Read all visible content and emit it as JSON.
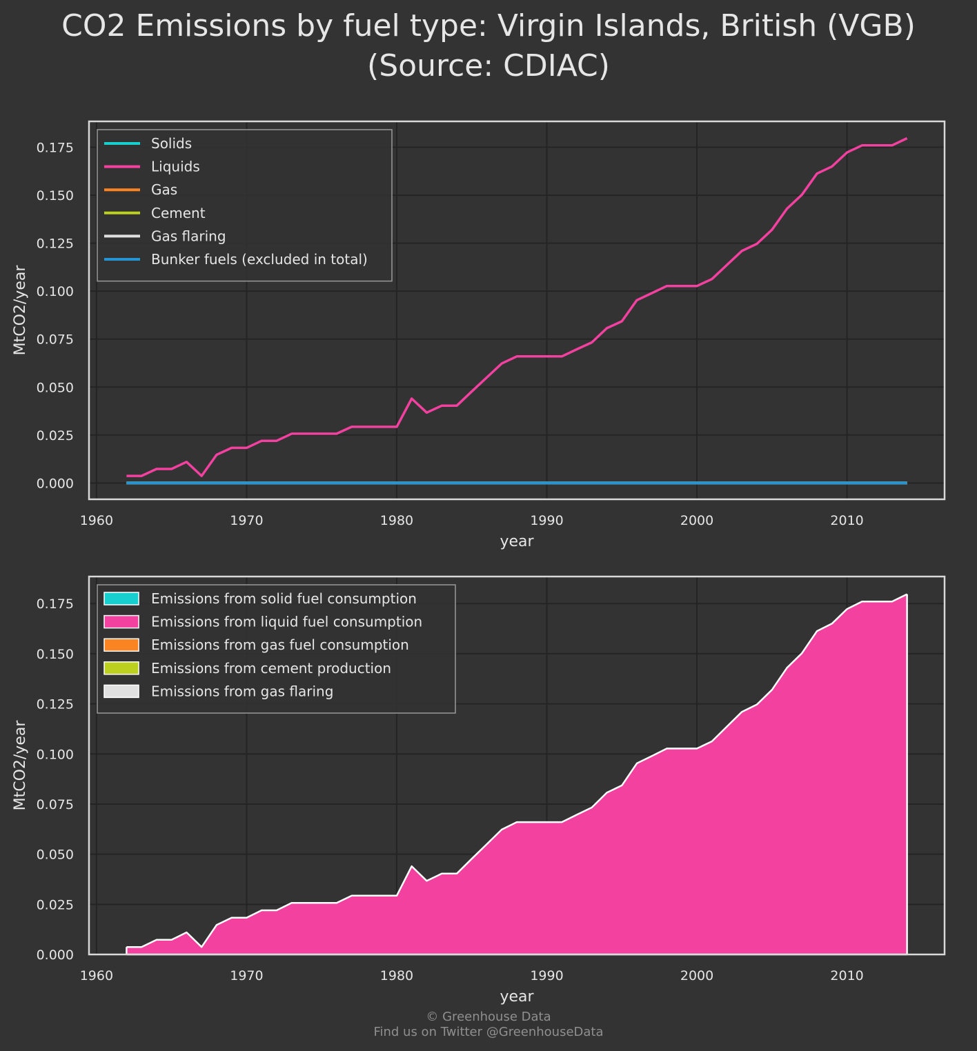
{
  "title_line1": "CO2 Emissions by fuel type: Virgin Islands, British (VGB)",
  "title_line2": "(Source: CDIAC)",
  "footer": {
    "credit": "© Greenhouse Data",
    "twitter": "Find us on Twitter @GreenhouseData"
  },
  "colors": {
    "background": "#333333",
    "axes_frame": "#d9d9d9",
    "grid": "#242424",
    "solids": "#17cfcf",
    "liquids": "#f2419f",
    "gas": "#fb8422",
    "cement": "#bcd01f",
    "gas_flaring": "#e0e0e0",
    "bunker": "#2494d2"
  },
  "chart_data": [
    {
      "type": "line",
      "xlabel": "year",
      "ylabel": "MtCO2/year",
      "xlim": [
        1959.5,
        2016.5
      ],
      "ylim": [
        -0.0085,
        0.1885
      ],
      "xticks": [
        1960,
        1970,
        1980,
        1990,
        2000,
        2010
      ],
      "yticks": [
        "0.000",
        "0.025",
        "0.050",
        "0.075",
        "0.100",
        "0.125",
        "0.150",
        "0.175"
      ],
      "legend_position": "top-left",
      "x": [
        1962,
        1963,
        1964,
        1965,
        1966,
        1967,
        1968,
        1969,
        1970,
        1971,
        1972,
        1973,
        1974,
        1975,
        1976,
        1977,
        1978,
        1979,
        1980,
        1981,
        1982,
        1983,
        1984,
        1985,
        1986,
        1987,
        1988,
        1989,
        1990,
        1991,
        1992,
        1993,
        1994,
        1995,
        1996,
        1997,
        1998,
        1999,
        2000,
        2001,
        2002,
        2003,
        2004,
        2005,
        2006,
        2007,
        2008,
        2009,
        2010,
        2011,
        2012,
        2013,
        2014
      ],
      "series": [
        {
          "name": "Solids",
          "color_key": "solids",
          "constant": 0
        },
        {
          "name": "Liquids",
          "color_key": "liquids",
          "values": [
            0.0037,
            0.0037,
            0.0073,
            0.0073,
            0.011,
            0.0037,
            0.0147,
            0.0183,
            0.0183,
            0.022,
            0.022,
            0.0257,
            0.0257,
            0.0257,
            0.0257,
            0.0293,
            0.0293,
            0.0293,
            0.0293,
            0.044,
            0.0367,
            0.0403,
            0.0403,
            0.0477,
            0.055,
            0.0623,
            0.066,
            0.066,
            0.066,
            0.066,
            0.0697,
            0.0733,
            0.0807,
            0.0843,
            0.0953,
            0.099,
            0.1027,
            0.1027,
            0.1027,
            0.1063,
            0.1137,
            0.121,
            0.1247,
            0.132,
            0.143,
            0.1503,
            0.1613,
            0.165,
            0.1723,
            0.176,
            0.176,
            0.176,
            0.1797
          ]
        },
        {
          "name": "Gas",
          "color_key": "gas",
          "constant": 0
        },
        {
          "name": "Cement",
          "color_key": "cement",
          "constant": 0
        },
        {
          "name": "Gas flaring",
          "color_key": "gas_flaring",
          "constant": 0
        },
        {
          "name": "Bunker fuels (excluded in total)",
          "color_key": "bunker",
          "constant": 0
        }
      ]
    },
    {
      "type": "area",
      "xlabel": "year",
      "ylabel": "MtCO2/year",
      "xlim": [
        1959.5,
        2016.5
      ],
      "ylim": [
        0,
        0.1885
      ],
      "xticks": [
        1960,
        1970,
        1980,
        1990,
        2000,
        2010
      ],
      "yticks": [
        "0.000",
        "0.025",
        "0.050",
        "0.075",
        "0.100",
        "0.125",
        "0.150",
        "0.175"
      ],
      "legend_position": "top-left",
      "stacked": true,
      "series": [
        {
          "name": "Emissions from solid fuel consumption",
          "color_key": "solids",
          "constant": 0
        },
        {
          "name": "Emissions from liquid fuel consumption",
          "color_key": "liquids",
          "same_as": "Liquids"
        },
        {
          "name": "Emissions from gas fuel consumption",
          "color_key": "gas",
          "constant": 0
        },
        {
          "name": "Emissions from cement production",
          "color_key": "cement",
          "constant": 0
        },
        {
          "name": "Emissions from gas flaring",
          "color_key": "gas_flaring",
          "constant": 0
        }
      ]
    }
  ]
}
